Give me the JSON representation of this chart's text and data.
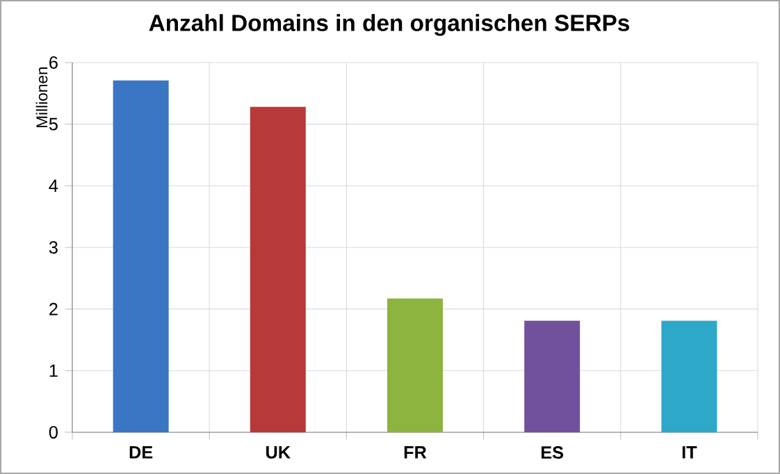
{
  "chart_data": {
    "type": "bar",
    "title": "Anzahl Domains in den organischen SERPs",
    "ylabel": "Millionen",
    "categories": [
      "DE",
      "UK",
      "FR",
      "ES",
      "IT"
    ],
    "values": [
      5.71,
      5.28,
      2.17,
      1.81,
      1.81
    ],
    "colors": [
      "#3a76c4",
      "#b8393a",
      "#8cb43f",
      "#71519c",
      "#2ea8c8"
    ],
    "ylim": [
      0,
      6
    ],
    "yticks": [
      0,
      1,
      2,
      3,
      4,
      5,
      6
    ],
    "grid": true
  }
}
